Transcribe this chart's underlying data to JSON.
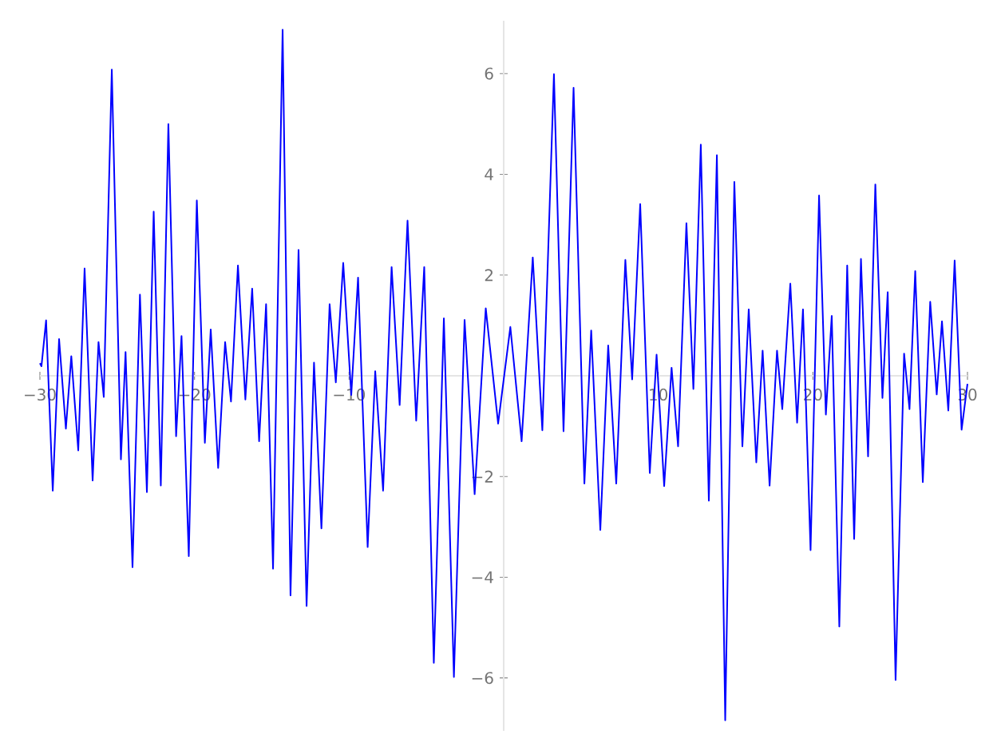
{
  "chart_data": {
    "type": "line",
    "x": [
      -30.0,
      -29.9,
      -29.6,
      -29.17,
      -28.76,
      -28.32,
      -27.97,
      -27.52,
      -27.11,
      -26.59,
      -26.21,
      -25.87,
      -25.35,
      -24.76,
      -24.46,
      -24.01,
      -23.53,
      -23.08,
      -22.64,
      -22.18,
      -21.69,
      -21.19,
      -20.84,
      -20.37,
      -19.85,
      -19.33,
      -18.95,
      -18.47,
      -18.02,
      -17.64,
      -17.19,
      -16.71,
      -16.27,
      -15.82,
      -15.37,
      -14.92,
      -14.3,
      -13.79,
      -13.27,
      -12.75,
      -12.27,
      -11.79,
      -11.26,
      -10.86,
      -10.38,
      -9.86,
      -9.42,
      -8.8,
      -8.31,
      -7.8,
      -7.25,
      -6.73,
      -6.22,
      -5.66,
      -5.14,
      -4.52,
      -3.87,
      -3.22,
      -2.53,
      -1.88,
      -1.16,
      -0.36,
      0.43,
      1.16,
      1.88,
      2.5,
      3.25,
      3.87,
      4.52,
      5.22,
      5.66,
      6.25,
      6.76,
      7.28,
      7.87,
      8.31,
      8.83,
      9.45,
      9.89,
      10.38,
      10.86,
      11.28,
      11.82,
      12.27,
      12.75,
      13.27,
      13.79,
      14.33,
      14.92,
      15.44,
      15.85,
      16.34,
      16.75,
      17.2,
      17.68,
      18.02,
      18.54,
      18.98,
      19.36,
      19.85,
      20.4,
      20.84,
      21.22,
      21.71,
      22.22,
      22.67,
      23.11,
      23.57,
      24.04,
      24.5,
      24.84,
      25.35,
      25.9,
      26.25,
      26.62,
      27.11,
      27.59,
      28.01,
      28.35,
      28.76,
      29.17,
      29.62,
      30.0
    ],
    "series": [
      {
        "color": "#0000ff",
        "line_style": "solid",
        "values": [
          0.25,
          0.19,
          1.1,
          -2.28,
          0.73,
          -1.05,
          0.39,
          -1.48,
          2.13,
          -2.08,
          0.67,
          -0.42,
          6.08,
          -1.66,
          0.47,
          -3.8,
          1.61,
          -2.31,
          3.26,
          -2.18,
          5.0,
          -1.2,
          0.79,
          -3.58,
          3.48,
          -1.33,
          0.92,
          -1.83,
          0.67,
          -0.51,
          2.19,
          -0.47,
          1.73,
          -1.3,
          1.42,
          -3.83,
          6.87,
          -4.36,
          2.5,
          -4.57,
          0.26,
          -3.03,
          1.42,
          -0.13,
          2.24,
          -0.38,
          1.95,
          -3.4,
          0.09,
          -2.28,
          2.16,
          -0.58,
          3.08,
          -0.89,
          2.16,
          -5.7,
          1.14,
          -5.98,
          1.11,
          -2.35,
          1.34,
          -0.95,
          0.97,
          -1.3,
          2.35,
          -1.08,
          5.99,
          -1.1,
          5.72,
          -2.14,
          0.9,
          -3.06,
          0.6,
          -2.14,
          2.3,
          -0.07,
          3.41,
          -1.93,
          0.42,
          -2.19,
          0.16,
          -1.4,
          3.03,
          -0.26,
          4.59,
          -2.48,
          4.38,
          -6.84,
          3.85,
          -1.4,
          1.32,
          -1.72,
          0.5,
          -2.18,
          0.5,
          -0.66,
          1.83,
          -0.93,
          1.32,
          -3.46,
          3.58,
          -0.77,
          1.19,
          -4.98,
          2.19,
          -3.24,
          2.32,
          -1.6,
          3.8,
          -0.44,
          1.66,
          -6.04,
          0.44,
          -0.66,
          2.08,
          -2.11,
          1.47,
          -0.37,
          1.08,
          -0.69,
          2.29,
          -1.07,
          -0.16
        ]
      }
    ],
    "xlim": [
      -30,
      30
    ],
    "ylim": [
      -7.05,
      7.05
    ],
    "xticks": [
      {
        "value": -30,
        "label": "−30"
      },
      {
        "value": -20,
        "label": "−20"
      },
      {
        "value": -10,
        "label": "−10"
      },
      10,
      20,
      30
    ],
    "yticks": [
      {
        "value": -6,
        "label": "−6"
      },
      {
        "value": -4,
        "label": "−4"
      },
      {
        "value": -2,
        "label": "−2"
      },
      2,
      4,
      6
    ],
    "grid": false,
    "marker": "none"
  }
}
